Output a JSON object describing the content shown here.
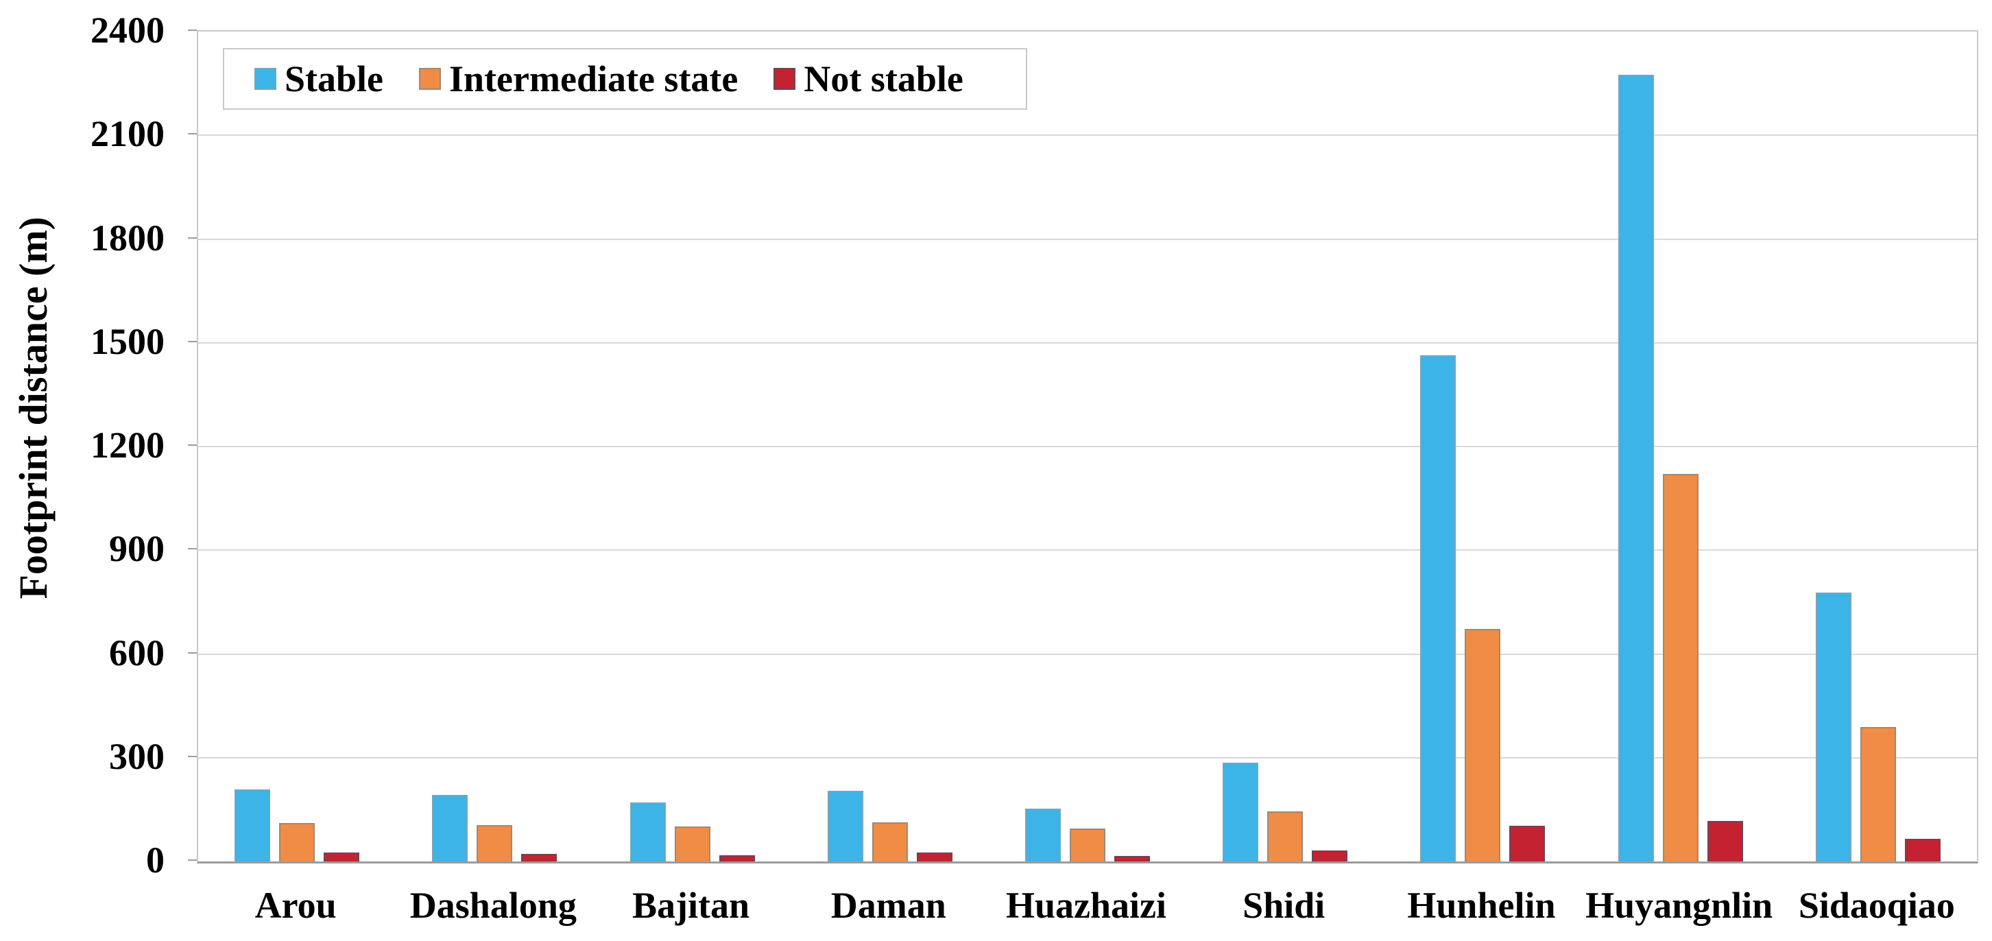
{
  "chart_data": {
    "type": "bar",
    "title": "",
    "xlabel": "",
    "ylabel": "Footprint distance (m)",
    "ylim": [
      0,
      2400
    ],
    "ytick_step": 300,
    "ytick_labels": [
      "0",
      "300",
      "600",
      "900",
      "1200",
      "1500",
      "1800",
      "2100",
      "2400"
    ],
    "grid": "horizontal",
    "legend_position": "top-left",
    "background_color": "#ffffff",
    "gridline_color": "#d9d9d9",
    "axis_color": "#9c9c9c",
    "categories": [
      "Arou",
      "Dashalong",
      "Bajitan",
      "Daman",
      "Huazhaizi",
      "Shidi",
      "Hunhelin",
      "Huyangnlin",
      "Sidaoqiao"
    ],
    "series": [
      {
        "name": "Stable",
        "color": "#3cb4e8",
        "border_color": "#74a6bd",
        "values": [
          208,
          193,
          170,
          205,
          153,
          285,
          1463,
          2276,
          778
        ]
      },
      {
        "name": "Intermediate state",
        "color": "#f08c45",
        "border_color": "#9b8a77",
        "values": [
          111,
          105,
          101,
          113,
          95,
          144,
          672,
          1120,
          389
        ]
      },
      {
        "name": "Not stable",
        "color": "#c52231",
        "border_color": "#6e4256",
        "values": [
          26,
          21,
          18,
          26,
          16,
          32,
          103,
          117,
          65
        ]
      }
    ]
  }
}
